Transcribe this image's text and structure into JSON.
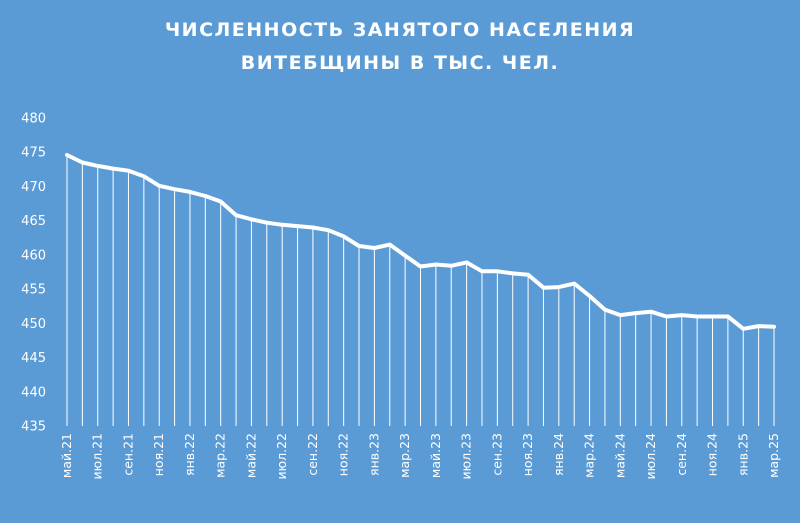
{
  "chart_data": {
    "type": "line",
    "title_lines": [
      "ЧИСЛЕННОСТЬ ЗАНЯТОГО НАСЕЛЕНИЯ",
      "ВИТЕБЩИНЫ В ТЫС. ЧЕЛ."
    ],
    "xlabel": "",
    "ylabel": "",
    "ylim": [
      435,
      480
    ],
    "y_ticks": [
      435,
      440,
      445,
      450,
      455,
      460,
      465,
      470,
      475,
      480
    ],
    "x": [
      "май.21",
      "июн.21",
      "июл.21",
      "авг.21",
      "сен.21",
      "окт.21",
      "ноя.21",
      "дек.21",
      "янв.22",
      "фев.22",
      "мар.22",
      "апр.22",
      "май.22",
      "июн.22",
      "июл.22",
      "авг.22",
      "сен.22",
      "окт.22",
      "ноя.22",
      "дек.22",
      "янв.23",
      "фев.23",
      "мар.23",
      "апр.23",
      "май.23",
      "июн.23",
      "июл.23",
      "авг.23",
      "сен.23",
      "окт.23",
      "ноя.23",
      "дек.23",
      "янв.24",
      "фев.24",
      "мар.24",
      "апр.24",
      "май.24",
      "июн.24",
      "июл.24",
      "авг.24",
      "сен.24",
      "окт.24",
      "ноя.24",
      "дек.24",
      "янв.25",
      "фев.25",
      "мар.25"
    ],
    "x_tick_labels": [
      "май.21",
      "",
      "июл.21",
      "",
      "сен.21",
      "",
      "ноя.21",
      "",
      "янв.22",
      "",
      "мар.22",
      "",
      "май.22",
      "",
      "июл.22",
      "",
      "сен.22",
      "",
      "ноя.22",
      "",
      "янв.23",
      "",
      "мар.23",
      "",
      "май.23",
      "",
      "июл.23",
      "",
      "сен.23",
      "",
      "ноя.23",
      "",
      "янв.24",
      "",
      "мар.24",
      "",
      "май.24",
      "",
      "июл.24",
      "",
      "сен.24",
      "",
      "ноя.24",
      "",
      "янв.25",
      "",
      "мар.25"
    ],
    "series": [
      {
        "values": [
          474.6,
          473.5,
          473.0,
          472.6,
          472.3,
          471.5,
          470.1,
          469.6,
          469.2,
          468.6,
          467.8,
          465.8,
          465.2,
          464.7,
          464.4,
          464.2,
          464.0,
          463.6,
          462.7,
          461.3,
          461.0,
          461.5,
          459.9,
          458.3,
          458.6,
          458.4,
          458.9,
          457.6,
          457.6,
          457.3,
          457.1,
          455.2,
          455.3,
          455.8,
          454.0,
          452.0,
          451.2,
          451.5,
          451.7,
          451.0,
          451.2,
          451.0,
          451.0,
          451.0,
          449.2,
          449.6,
          449.5
        ],
        "color": "#ffffff"
      }
    ],
    "drop_lines": true,
    "grid": false,
    "legend": "none"
  }
}
